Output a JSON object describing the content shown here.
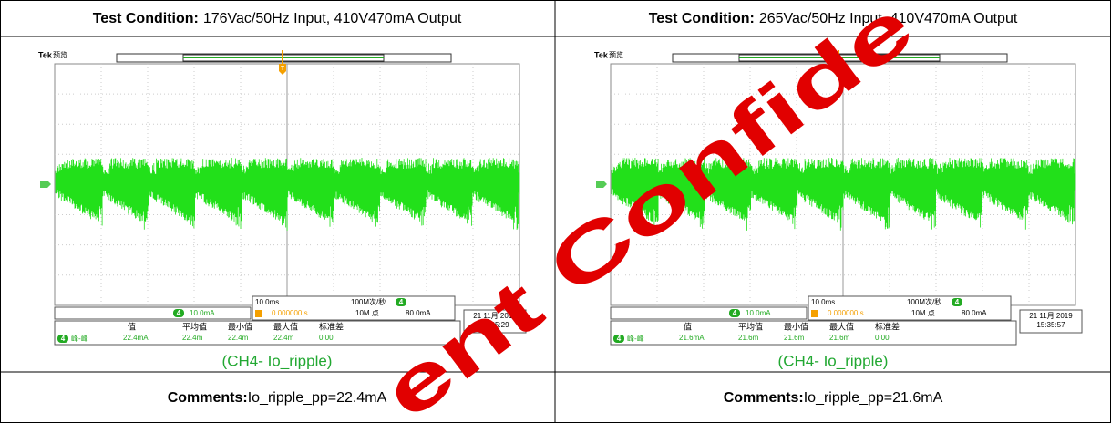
{
  "panels": [
    {
      "condition_label": "Test Condition:",
      "condition": "176Vac/50Hz Input, 410V470mA Output",
      "scope": {
        "brand": "Tek",
        "mode": "预览",
        "channel": "4",
        "trigger_mark": "T",
        "scale": "10.0mA",
        "timebase": "10.0ms",
        "sample_rate": "100M次/秒",
        "record": "10M 点",
        "trigger_level": "80.0mA",
        "trigger_time": "0.000000 s",
        "date": "21 11月 2019",
        "time": "15:35:29",
        "meas_label": "峰-峰",
        "meas_headers": [
          "值",
          "平均值",
          "最小值",
          "最大值",
          "标准差"
        ],
        "meas_values": [
          "22.4mA",
          "22.4m",
          "22.4m",
          "22.4m",
          "0.00"
        ]
      },
      "caption": "(CH4- Io_ripple)",
      "comments_label": "Comments:",
      "comments": "Io_ripple_pp=22.4mA"
    },
    {
      "condition_label": "Test Condition:",
      "condition": "265Vac/50Hz Input, 410V470mA Output",
      "scope": {
        "brand": "Tek",
        "mode": "预览",
        "channel": "4",
        "trigger_mark": "T",
        "scale": "10.0mA",
        "timebase": "10.0ms",
        "sample_rate": "100M次/秒",
        "record": "10M 点",
        "trigger_level": "80.0mA",
        "trigger_time": "0.000000 s",
        "date": "21 11月 2019",
        "time": "15:35:57",
        "meas_label": "峰-峰",
        "meas_headers": [
          "值",
          "平均值",
          "最小值",
          "最大值",
          "标准差"
        ],
        "meas_values": [
          "21.6mA",
          "21.6m",
          "21.6m",
          "21.6m",
          "0.00"
        ]
      },
      "caption": "(CH4- Io_ripple)",
      "comments_label": "Comments:",
      "comments": "Io_ripple_pp=21.6mA"
    }
  ],
  "watermark": "ent Confide"
}
